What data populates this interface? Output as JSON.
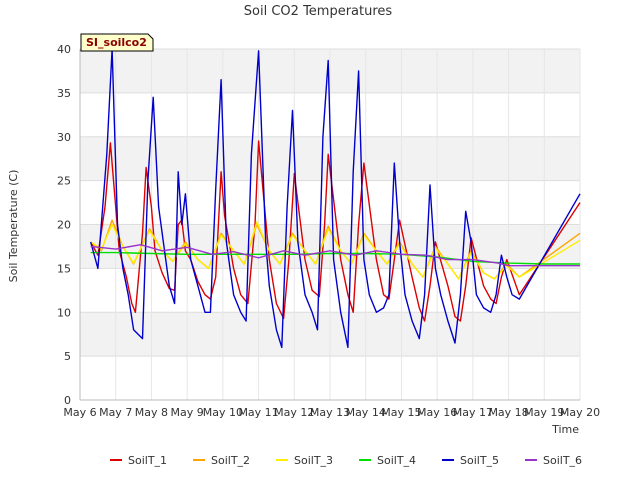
{
  "chart_data": {
    "type": "line",
    "title": "Soil CO2 Temperatures",
    "xlabel": "Time",
    "ylabel": "Soil Temperature (C)",
    "station_tag": "SI_soilco2",
    "ylim": [
      0,
      40
    ],
    "yticks": [
      "0",
      "5",
      "10",
      "15",
      "20",
      "25",
      "30",
      "35",
      "40"
    ],
    "xlim": [
      6,
      20
    ],
    "xticks": [
      "May 6",
      "May 7",
      "May 8",
      "May 9",
      "May 10",
      "May 11",
      "May 12",
      "May 13",
      "May 14",
      "May 15",
      "May 16",
      "May 17",
      "May 18",
      "May 19",
      "May 20"
    ],
    "grid": true,
    "legend_position": "bottom",
    "series": [
      {
        "name": "SoilT_1",
        "color": "#dd0000",
        "x": [
          6.3,
          6.5,
          6.7,
          6.85,
          7.0,
          7.1,
          7.3,
          7.45,
          7.55,
          7.75,
          7.85,
          8.0,
          8.1,
          8.3,
          8.5,
          8.65,
          8.75,
          8.85,
          8.95,
          9.1,
          9.3,
          9.5,
          9.65,
          9.8,
          9.95,
          10.05,
          10.3,
          10.5,
          10.7,
          10.9,
          11.0,
          11.3,
          11.5,
          11.7,
          11.85,
          12.0,
          12.3,
          12.5,
          12.7,
          12.85,
          12.95,
          13.3,
          13.5,
          13.65,
          13.8,
          13.95,
          14.3,
          14.5,
          14.65,
          14.8,
          14.95,
          15.3,
          15.5,
          15.65,
          15.8,
          15.95,
          16.3,
          16.5,
          16.65,
          16.8,
          16.95,
          17.3,
          17.5,
          17.65,
          17.8,
          17.95,
          18.3,
          20.0
        ],
        "y": [
          18.0,
          16.5,
          22.0,
          29.3,
          22.0,
          17.0,
          14.0,
          11.0,
          10.0,
          19.0,
          26.5,
          22.0,
          17.0,
          14.5,
          12.7,
          12.5,
          20.0,
          20.5,
          17.0,
          16.0,
          13.5,
          12.0,
          11.5,
          14.0,
          26.0,
          21.0,
          15.0,
          12.0,
          11.0,
          20.0,
          29.5,
          16.0,
          11.0,
          9.3,
          16.0,
          25.8,
          16.0,
          12.5,
          11.8,
          20.0,
          28.0,
          16.0,
          12.0,
          10.0,
          20.0,
          27.0,
          16.0,
          12.0,
          11.5,
          16.0,
          20.5,
          14.0,
          10.5,
          9.0,
          13.0,
          18.0,
          13.0,
          9.5,
          9.0,
          13.0,
          18.5,
          13.0,
          11.5,
          11.0,
          14.0,
          16.0,
          12.0,
          22.5
        ]
      },
      {
        "name": "SoilT_2",
        "color": "#ffa500",
        "x": [
          6.3,
          6.6,
          6.9,
          7.2,
          7.5,
          7.95,
          8.3,
          8.6,
          8.95,
          9.3,
          9.6,
          9.95,
          10.3,
          10.6,
          10.95,
          11.3,
          11.6,
          11.95,
          12.3,
          12.6,
          12.95,
          13.3,
          13.6,
          13.95,
          14.3,
          14.6,
          14.95,
          15.3,
          15.6,
          15.95,
          16.3,
          16.6,
          16.95,
          17.3,
          17.6,
          17.95,
          18.3,
          20.0
        ],
        "y": [
          18.0,
          17.0,
          20.5,
          17.5,
          15.5,
          19.5,
          17.0,
          15.8,
          18.0,
          16.0,
          15.0,
          19.0,
          17.0,
          15.5,
          20.0,
          17.0,
          15.5,
          19.0,
          17.0,
          15.5,
          19.8,
          17.0,
          15.5,
          19.0,
          17.0,
          15.5,
          18.0,
          15.5,
          14.0,
          17.5,
          15.5,
          13.8,
          17.0,
          14.5,
          13.8,
          15.5,
          14.0,
          19.0
        ]
      },
      {
        "name": "SoilT_3",
        "color": "#ffee00",
        "x": [
          6.3,
          6.6,
          6.9,
          7.2,
          7.5,
          7.95,
          8.3,
          8.6,
          8.95,
          9.3,
          9.6,
          9.95,
          10.3,
          10.6,
          10.95,
          11.3,
          11.6,
          11.95,
          12.3,
          12.6,
          12.95,
          13.3,
          13.6,
          13.95,
          14.3,
          14.6,
          14.95,
          15.3,
          15.6,
          15.95,
          16.3,
          16.6,
          16.95,
          17.3,
          17.6,
          17.95,
          18.3,
          20.0
        ],
        "y": [
          18.0,
          17.2,
          20.0,
          17.5,
          15.6,
          19.3,
          17.0,
          15.8,
          17.8,
          16.0,
          15.0,
          18.8,
          17.0,
          15.5,
          20.3,
          17.0,
          15.5,
          18.8,
          17.0,
          15.5,
          19.5,
          17.0,
          15.5,
          18.8,
          17.0,
          15.5,
          17.8,
          15.5,
          14.0,
          17.3,
          15.5,
          13.8,
          16.8,
          14.5,
          13.8,
          15.3,
          14.0,
          18.2
        ]
      },
      {
        "name": "SoilT_4",
        "color": "#00dd00",
        "x": [
          6.3,
          7.0,
          8.0,
          9.0,
          10.0,
          11.0,
          12.0,
          13.0,
          14.0,
          15.0,
          16.0,
          17.0,
          18.0,
          19.0,
          20.0
        ],
        "y": [
          16.8,
          16.8,
          16.7,
          16.6,
          16.6,
          16.6,
          16.6,
          16.7,
          16.7,
          16.6,
          16.3,
          15.8,
          15.6,
          15.5,
          15.5
        ]
      },
      {
        "name": "SoilT_5",
        "color": "#0000cc",
        "x": [
          6.3,
          6.5,
          6.75,
          6.9,
          7.05,
          7.2,
          7.35,
          7.5,
          7.75,
          7.9,
          8.05,
          8.2,
          8.5,
          8.65,
          8.75,
          8.85,
          8.95,
          9.1,
          9.3,
          9.5,
          9.65,
          9.8,
          9.95,
          10.1,
          10.3,
          10.5,
          10.65,
          10.8,
          11.0,
          11.2,
          11.3,
          11.5,
          11.65,
          11.8,
          11.95,
          12.1,
          12.3,
          12.5,
          12.65,
          12.8,
          12.95,
          13.1,
          13.3,
          13.5,
          13.65,
          13.8,
          13.95,
          14.1,
          14.3,
          14.5,
          14.65,
          14.8,
          14.95,
          15.1,
          15.3,
          15.5,
          15.65,
          15.8,
          15.95,
          16.1,
          16.3,
          16.5,
          16.65,
          16.8,
          16.95,
          17.1,
          17.3,
          17.5,
          17.65,
          17.8,
          17.95,
          18.1,
          18.3,
          20.0
        ],
        "y": [
          18.0,
          15.0,
          28.0,
          40.0,
          20.0,
          15.0,
          12.0,
          8.0,
          7.0,
          25.0,
          34.5,
          22.0,
          13.0,
          11.0,
          26.0,
          20.0,
          23.5,
          16.0,
          13.0,
          10.0,
          10.0,
          24.0,
          36.5,
          18.0,
          12.0,
          10.0,
          9.0,
          28.0,
          39.8,
          18.0,
          13.0,
          8.0,
          6.0,
          22.0,
          33.0,
          18.0,
          12.0,
          10.0,
          8.0,
          30.0,
          38.7,
          16.0,
          10.0,
          6.0,
          26.0,
          37.5,
          16.0,
          12.0,
          10.0,
          10.5,
          12.0,
          27.0,
          18.0,
          12.0,
          9.0,
          7.0,
          12.0,
          24.5,
          15.0,
          12.0,
          9.0,
          6.5,
          12.0,
          21.5,
          18.0,
          12.0,
          10.5,
          10.0,
          12.0,
          16.5,
          14.0,
          12.0,
          11.5,
          23.5
        ]
      },
      {
        "name": "SoilT_6",
        "color": "#9933cc",
        "x": [
          6.3,
          7.0,
          7.7,
          8.3,
          9.0,
          9.7,
          10.3,
          11.0,
          11.7,
          12.3,
          13.0,
          13.7,
          14.3,
          15.0,
          15.7,
          16.3,
          17.0,
          17.7,
          18.0,
          19.0,
          20.0
        ],
        "y": [
          17.5,
          17.2,
          17.7,
          17.0,
          17.4,
          16.6,
          16.9,
          16.2,
          17.0,
          16.5,
          17.0,
          16.5,
          17.0,
          16.6,
          16.5,
          16.0,
          16.0,
          15.6,
          15.3,
          15.3,
          15.3
        ]
      }
    ]
  }
}
